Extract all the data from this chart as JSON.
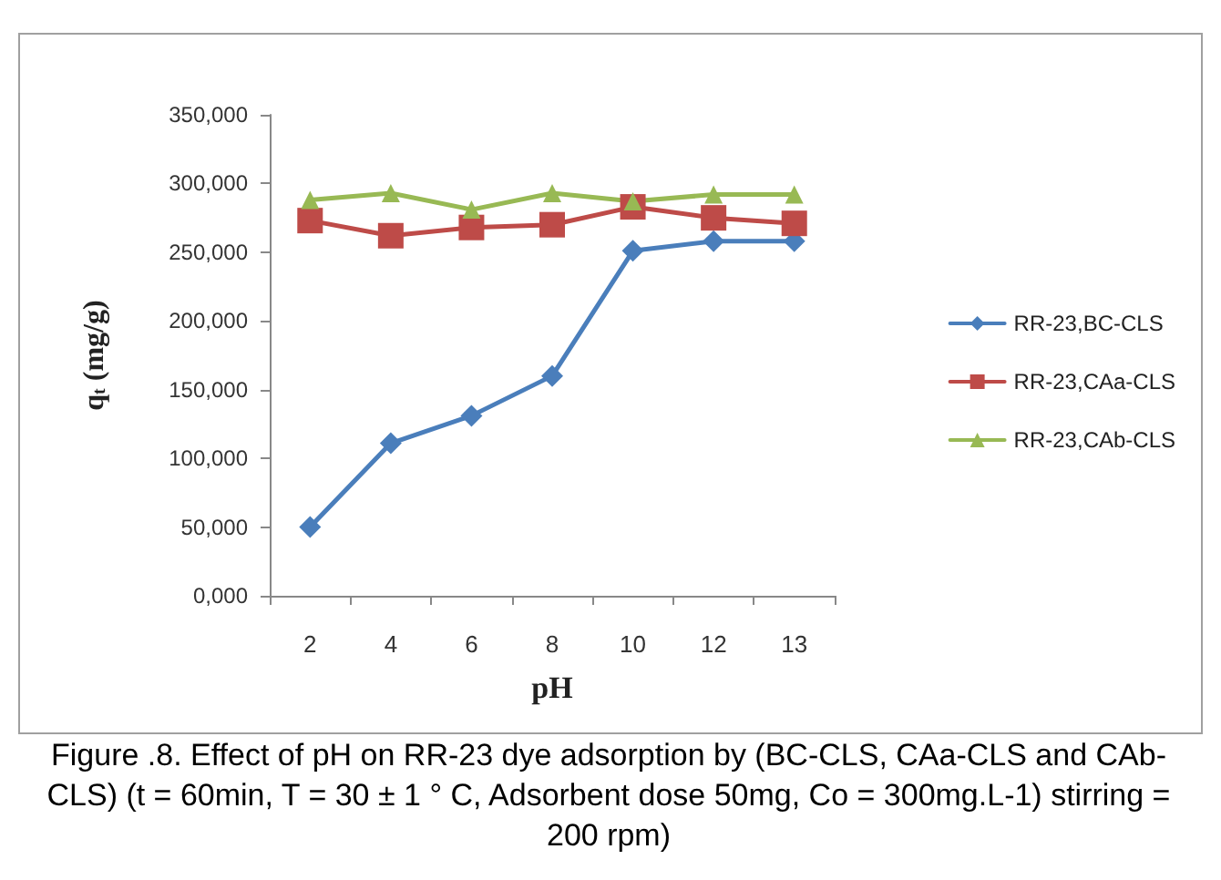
{
  "chart_data": {
    "type": "line",
    "xlabel": "pH",
    "ylabel": "q$_{t}$ (mg/g)",
    "categories": [
      "2",
      "4",
      "6",
      "8",
      "10",
      "12",
      "13"
    ],
    "series": [
      {
        "name": "RR-23,BC-CLS",
        "color": "#4a7ebb",
        "marker": "diamond",
        "values": [
          50000,
          111000,
          131000,
          160000,
          251000,
          258000,
          258000
        ]
      },
      {
        "name": "RR-23,CAa-CLS",
        "color": "#be4b48",
        "marker": "square",
        "values": [
          273000,
          262000,
          268000,
          270000,
          283000,
          275000,
          271000
        ]
      },
      {
        "name": "RR-23,CAb-CLS",
        "color": "#98b954",
        "marker": "triangle",
        "values": [
          288000,
          293000,
          281000,
          293000,
          287000,
          292000,
          292000
        ]
      }
    ],
    "ylim": [
      0,
      350000
    ],
    "yticks": [
      {
        "value": 0,
        "label": "0,000"
      },
      {
        "value": 50000,
        "label": "50,000"
      },
      {
        "value": 100000,
        "label": "100,000"
      },
      {
        "value": 150000,
        "label": "150,000"
      },
      {
        "value": 200000,
        "label": "200,000"
      },
      {
        "value": 250000,
        "label": "250,000"
      },
      {
        "value": 300000,
        "label": "300,000"
      },
      {
        "value": 350000,
        "label": "350,000"
      }
    ],
    "grid": false,
    "legend": "right",
    "line_style": "solid",
    "annotations": [
      "Figure .8.  Effect of pH on RR-23 dye adsorption by (BC-CLS, CAa-CLS and CAb-CLS) (t = 60min, T = 30 ± 1 ° C, Adsorbent dose 50mg, Co = 300mg.L-1) stirring = 200 rpm)"
    ]
  }
}
